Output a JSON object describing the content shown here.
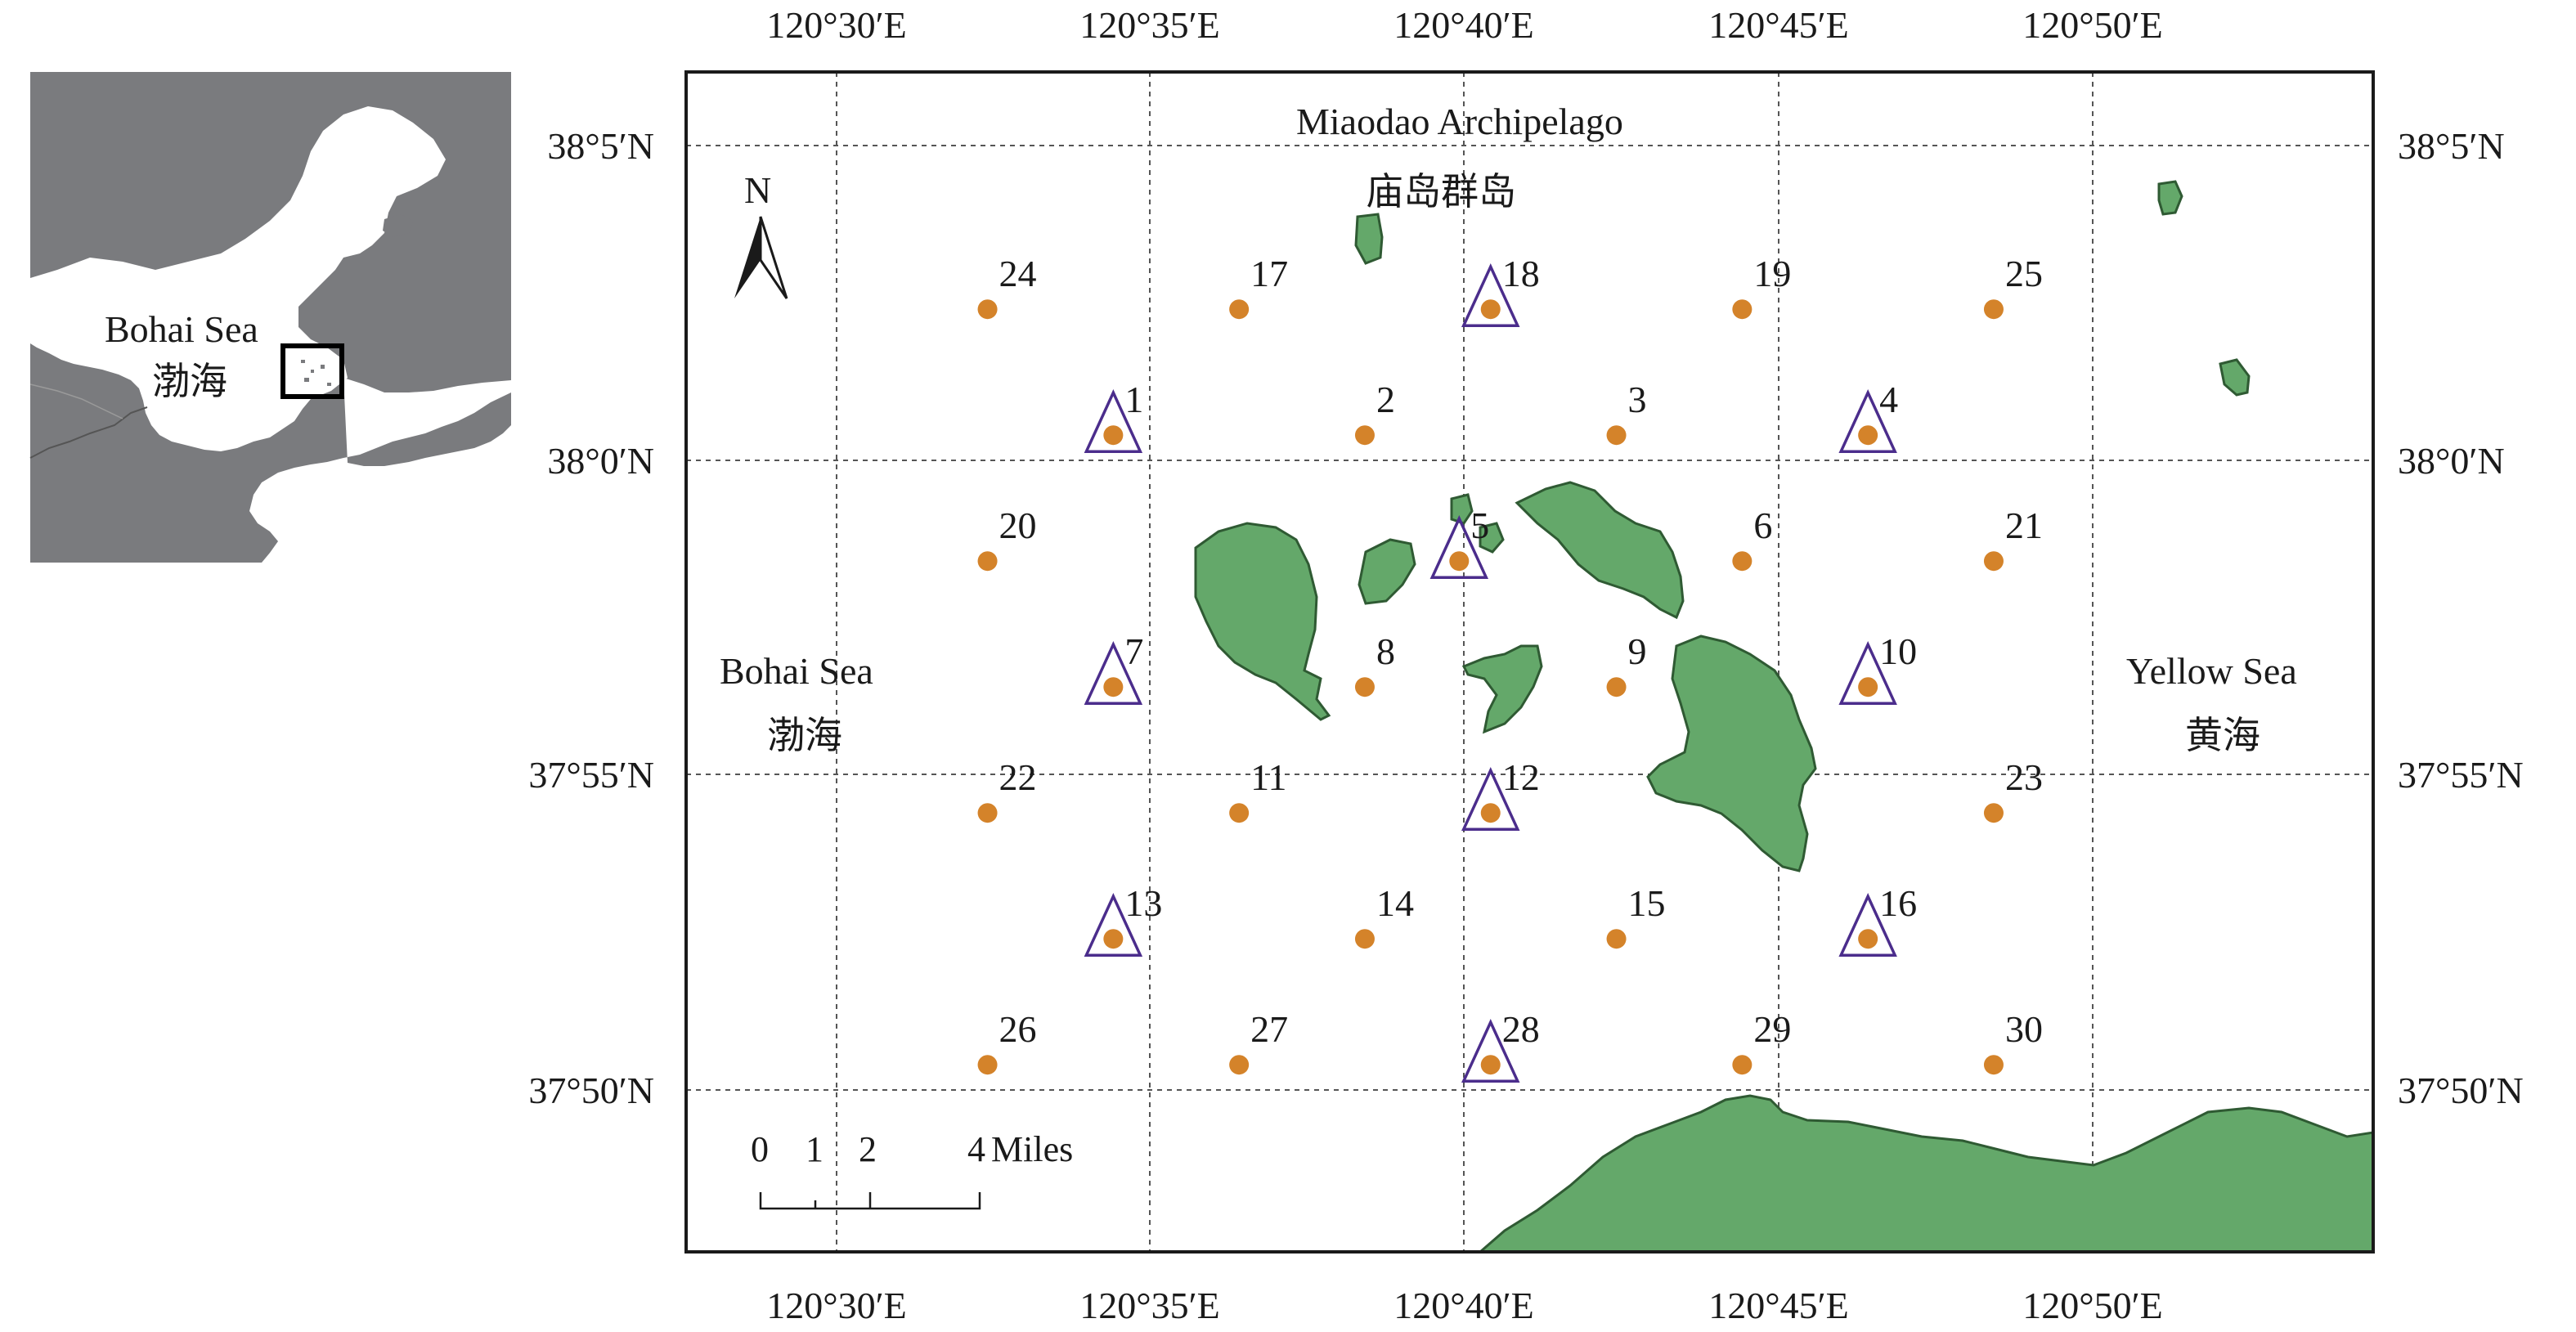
{
  "inset": {
    "labels": [
      "Bohai Sea",
      "渤海"
    ],
    "colors": {
      "land": "#ffffff",
      "water": "#7a7b7e",
      "border": "#555555"
    }
  },
  "map": {
    "title_en": "Miaodao Archipelago",
    "title_zh": "庙岛群岛",
    "left_sea_en": "Bohai Sea",
    "left_sea_zh": "渤海",
    "right_sea_en": "Yellow Sea",
    "right_sea_zh": "黄海",
    "north_label": "N",
    "lon_labels": [
      "120°30′E",
      "120°35′E",
      "120°40′E",
      "120°45′E",
      "120°50′E"
    ],
    "lat_labels": [
      "38°5′N",
      "38°0′N",
      "37°55′N",
      "37°50′N"
    ],
    "scale_bar": {
      "ticks": [
        "0",
        "1",
        "2",
        "4"
      ],
      "unit": "Miles"
    },
    "legend_colors": {
      "land": "#64a86a",
      "station_dot": "#d4832a",
      "triangle": "#4b2d8c"
    }
  },
  "stations": [
    {
      "id": "24",
      "lon_min": 32.4,
      "lat_min": 62.4,
      "triangle": false
    },
    {
      "id": "17",
      "lon_min": 36.4,
      "lat_min": 62.4,
      "triangle": false
    },
    {
      "id": "18",
      "lon_min": 40.4,
      "lat_min": 62.4,
      "triangle": true
    },
    {
      "id": "19",
      "lon_min": 44.4,
      "lat_min": 62.4,
      "triangle": false
    },
    {
      "id": "25",
      "lon_min": 48.4,
      "lat_min": 62.4,
      "triangle": false
    },
    {
      "id": "1",
      "lon_min": 34.4,
      "lat_min": 60.4,
      "triangle": true
    },
    {
      "id": "2",
      "lon_min": 38.4,
      "lat_min": 60.4,
      "triangle": false
    },
    {
      "id": "3",
      "lon_min": 42.4,
      "lat_min": 60.4,
      "triangle": false
    },
    {
      "id": "4",
      "lon_min": 46.4,
      "lat_min": 60.4,
      "triangle": true
    },
    {
      "id": "20",
      "lon_min": 32.4,
      "lat_min": 58.4,
      "triangle": false
    },
    {
      "id": "5",
      "lon_min": 39.9,
      "lat_min": 58.4,
      "triangle": true
    },
    {
      "id": "6",
      "lon_min": 44.4,
      "lat_min": 58.4,
      "triangle": false
    },
    {
      "id": "21",
      "lon_min": 48.4,
      "lat_min": 58.4,
      "triangle": false
    },
    {
      "id": "7",
      "lon_min": 34.4,
      "lat_min": 56.4,
      "triangle": true
    },
    {
      "id": "8",
      "lon_min": 38.4,
      "lat_min": 56.4,
      "triangle": false
    },
    {
      "id": "9",
      "lon_min": 42.4,
      "lat_min": 56.4,
      "triangle": false
    },
    {
      "id": "10",
      "lon_min": 46.4,
      "lat_min": 56.4,
      "triangle": true
    },
    {
      "id": "22",
      "lon_min": 32.4,
      "lat_min": 54.4,
      "triangle": false
    },
    {
      "id": "11",
      "lon_min": 36.4,
      "lat_min": 54.4,
      "triangle": false
    },
    {
      "id": "12",
      "lon_min": 40.4,
      "lat_min": 54.4,
      "triangle": true
    },
    {
      "id": "23",
      "lon_min": 48.4,
      "lat_min": 54.4,
      "triangle": false
    },
    {
      "id": "13",
      "lon_min": 34.4,
      "lat_min": 52.4,
      "triangle": true
    },
    {
      "id": "14",
      "lon_min": 38.4,
      "lat_min": 52.4,
      "triangle": false
    },
    {
      "id": "15",
      "lon_min": 42.4,
      "lat_min": 52.4,
      "triangle": false
    },
    {
      "id": "16",
      "lon_min": 46.4,
      "lat_min": 52.4,
      "triangle": true
    },
    {
      "id": "26",
      "lon_min": 32.4,
      "lat_min": 50.4,
      "triangle": false
    },
    {
      "id": "27",
      "lon_min": 36.4,
      "lat_min": 50.4,
      "triangle": false
    },
    {
      "id": "28",
      "lon_min": 40.4,
      "lat_min": 50.4,
      "triangle": true
    },
    {
      "id": "29",
      "lon_min": 44.4,
      "lat_min": 50.4,
      "triangle": false
    },
    {
      "id": "30",
      "lon_min": 48.4,
      "lat_min": 50.4,
      "triangle": false
    }
  ]
}
